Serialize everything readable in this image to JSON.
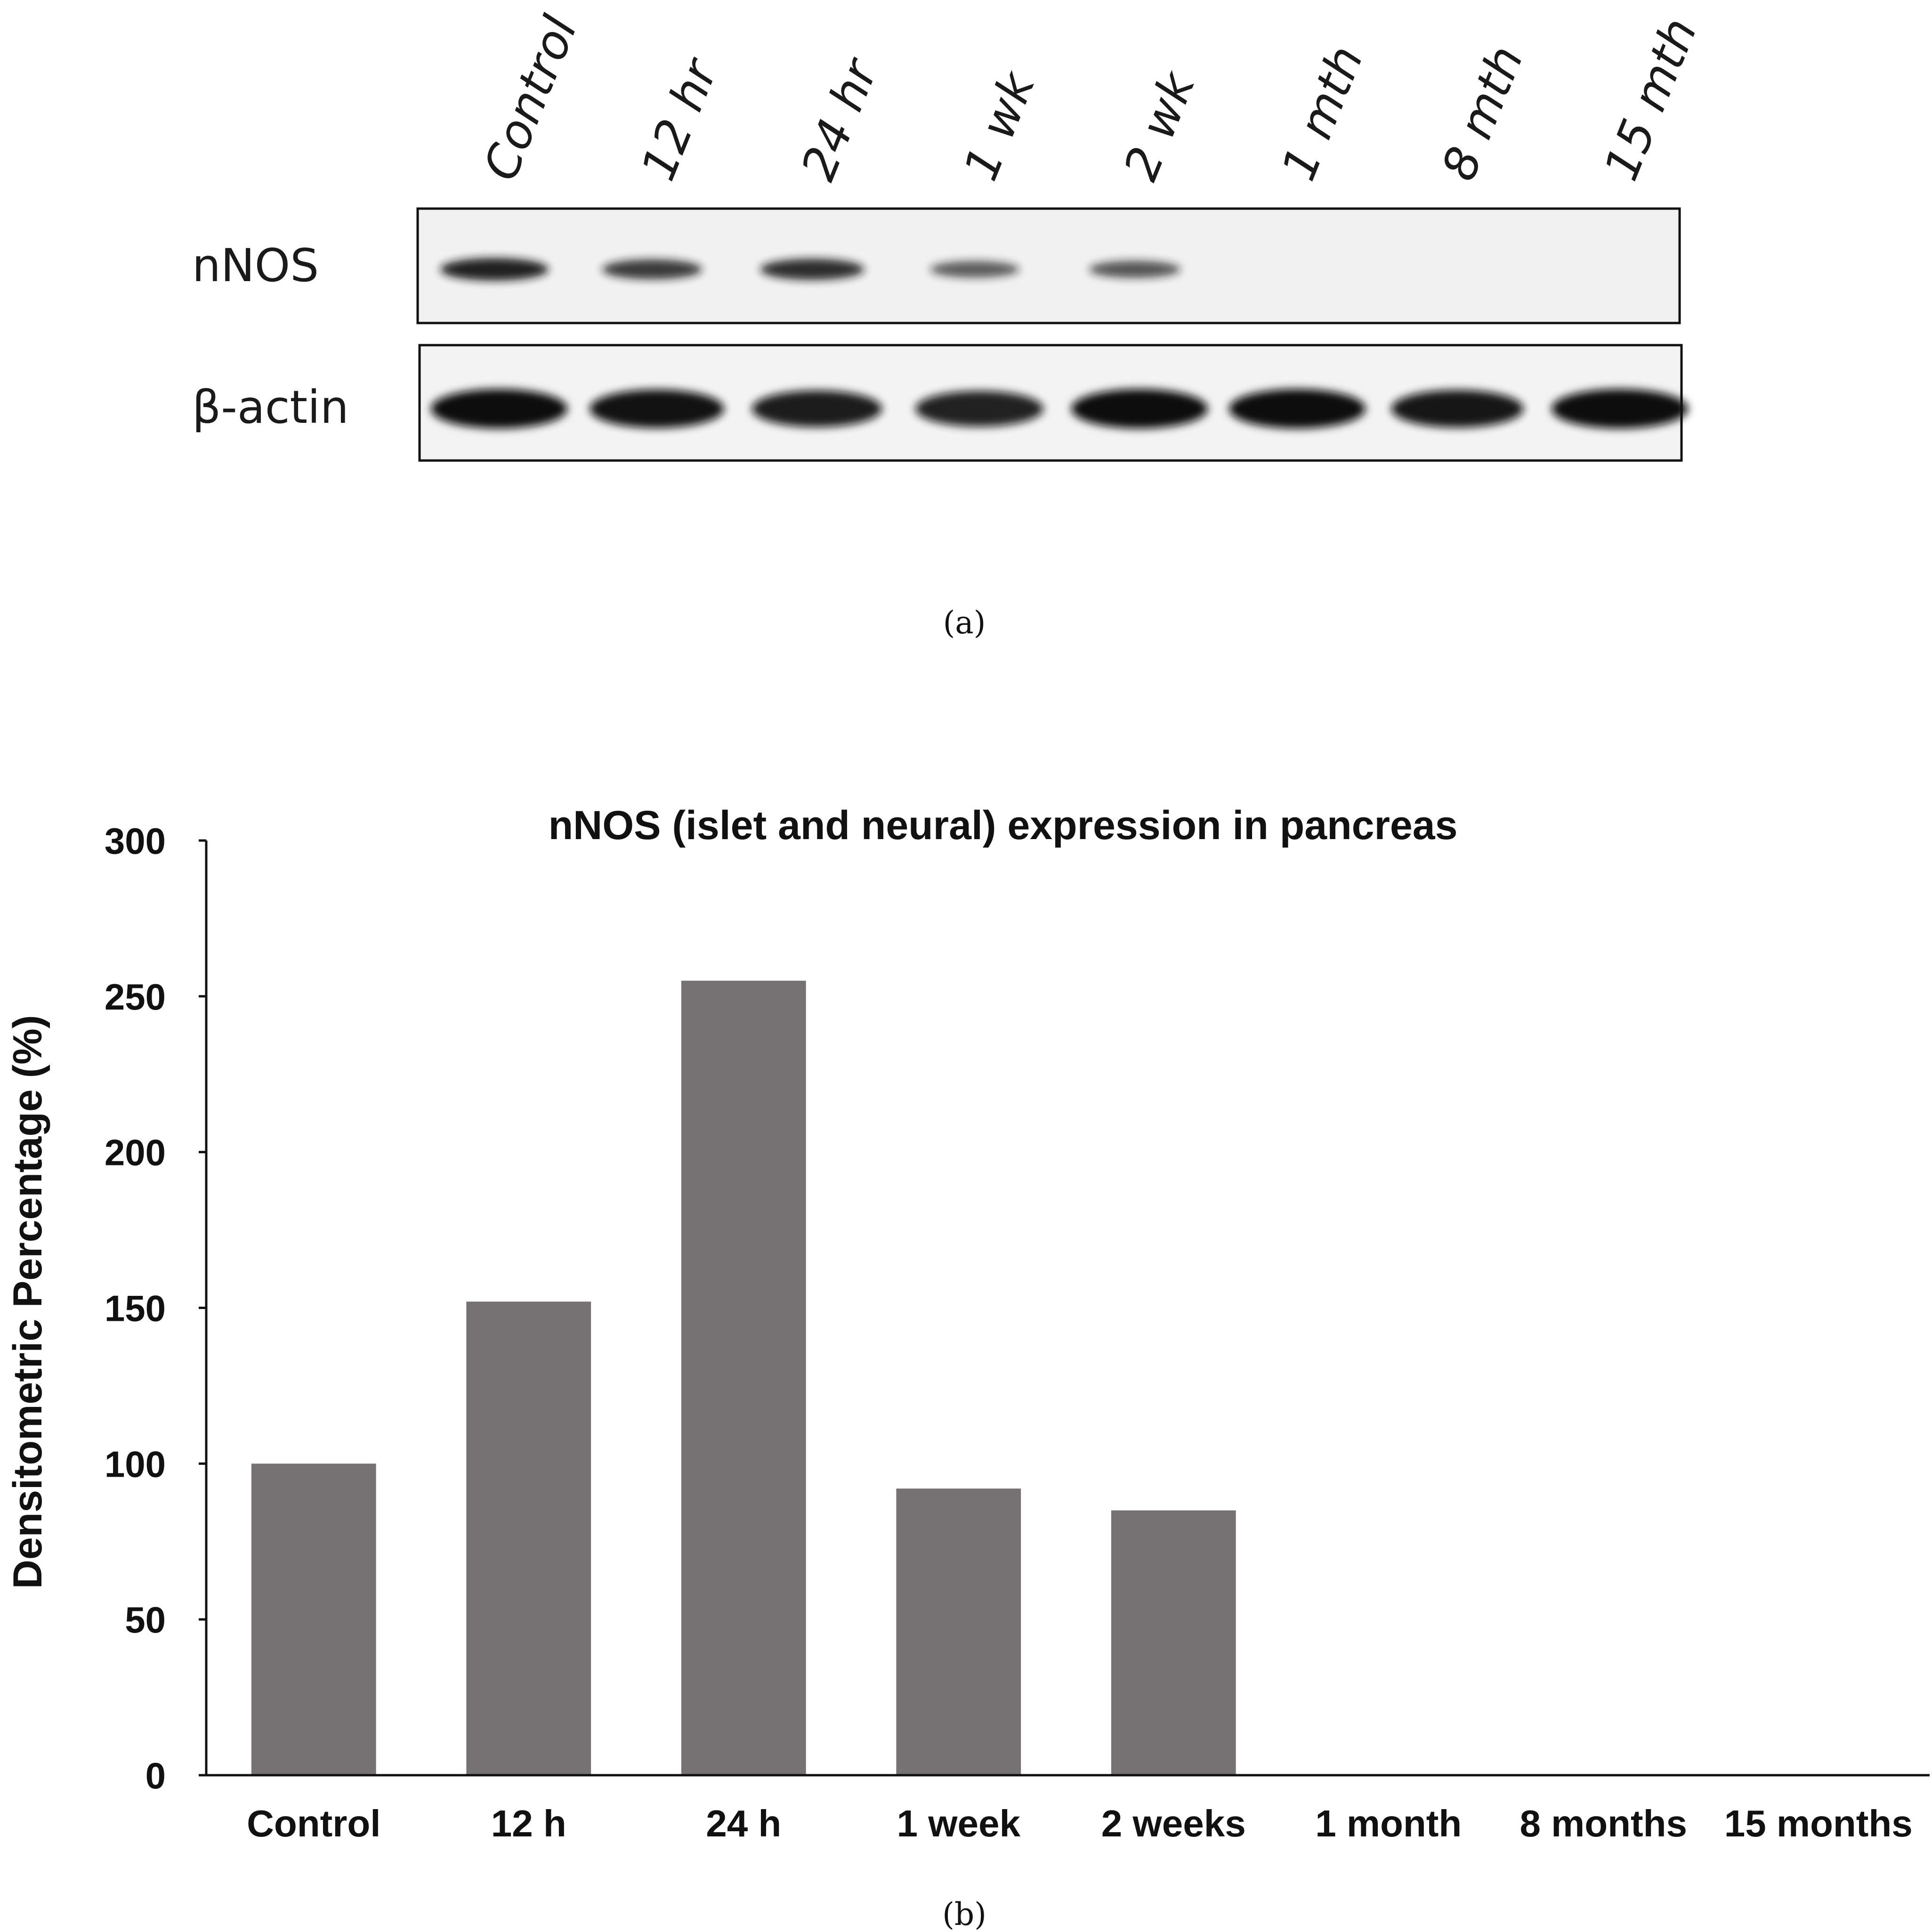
{
  "panel_a": {
    "caption": "(a)",
    "row_labels": [
      "nNOS",
      "β-actin"
    ],
    "lanes": [
      "Control",
      "12 hr",
      "24 hr",
      "1 wk",
      "2 wk",
      "1 mth",
      "8 mth",
      "15 mth"
    ],
    "nnos_intensity": [
      1.0,
      0.8,
      0.9,
      0.55,
      0.6,
      0,
      0,
      0
    ],
    "actin_intensity": [
      1.0,
      0.95,
      0.85,
      0.8,
      1.0,
      1.0,
      0.9,
      1.0
    ]
  },
  "panel_b": {
    "caption": "(b)"
  },
  "chart_data": {
    "type": "bar",
    "title": "nNOS (islet and neural) expression in pancreas",
    "xlabel": "",
    "ylabel": "Densitometric Percentage (%)",
    "categories": [
      "Control",
      "12 h",
      "24 h",
      "1 week",
      "2 weeks",
      "1 month",
      "8 months",
      "15 months"
    ],
    "values": [
      100,
      152,
      255,
      92,
      85,
      0,
      0,
      0
    ],
    "ylim": [
      0,
      300
    ],
    "yticks": [
      0,
      50,
      100,
      150,
      200,
      250,
      300
    ],
    "bar_color": "#767172",
    "grid": false,
    "legend": "none"
  }
}
